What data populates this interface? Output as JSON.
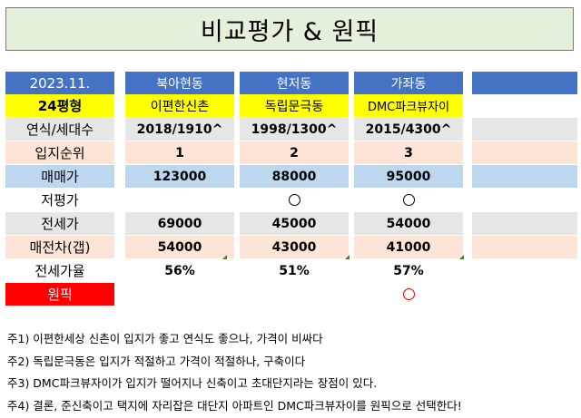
{
  "title": "비교평가 & 원픽",
  "colors": {
    "header_blue": "#4472c4",
    "yellow": "#ffff00",
    "gray": "#e7e6e6",
    "peach": "#fce4d6",
    "light_blue": "#bdd7ee",
    "red": "#ff0000",
    "mark_red": "#e00000"
  },
  "table": {
    "header": {
      "label": "2023.11.",
      "cols": [
        "북아현동",
        "현저동",
        "가좌동"
      ]
    },
    "complex": {
      "label": "24평형",
      "cols": [
        "이편한신촌",
        "독립문극동",
        "DMC파크뷰자이"
      ]
    },
    "built": {
      "label": "연식/세대수",
      "cols": [
        "2018/1910^",
        "1998/1300^",
        "2015/4300^"
      ]
    },
    "location_rank": {
      "label": "입지순위",
      "cols": [
        "1",
        "2",
        "3"
      ]
    },
    "sale_price": {
      "label": "매매가",
      "cols": [
        "123000",
        "88000",
        "95000"
      ]
    },
    "undervalued": {
      "label": "저평가",
      "marks": [
        false,
        true,
        true
      ]
    },
    "jeonse_price": {
      "label": "전세가",
      "cols": [
        "69000",
        "45000",
        "54000"
      ]
    },
    "gap": {
      "label": "매전차(갭)",
      "cols": [
        "54000",
        "43000",
        "41000"
      ]
    },
    "jeonse_ratio": {
      "label": "전세가율",
      "cols": [
        "56%",
        "51%",
        "57%"
      ]
    },
    "one_pick": {
      "label": "원픽",
      "marks": [
        false,
        false,
        true
      ]
    }
  },
  "notes": [
    "주1) 이편한세상 신촌이 입지가 좋고 연식도 좋으나, 가격이 비싸다",
    "주2) 독립문극동은 입지가 적절하고 가격이 적절하나, 구축이다",
    "주3) DMC파크뷰자이가 입지가 떨어지나 신축이고 초대단지라는 장점이 있다.",
    "주4) 결론, 준신축이고 택지에 자리잡은 대단지 아파트인 DMC파크뷰자이를 원픽으로 선택한다!"
  ]
}
